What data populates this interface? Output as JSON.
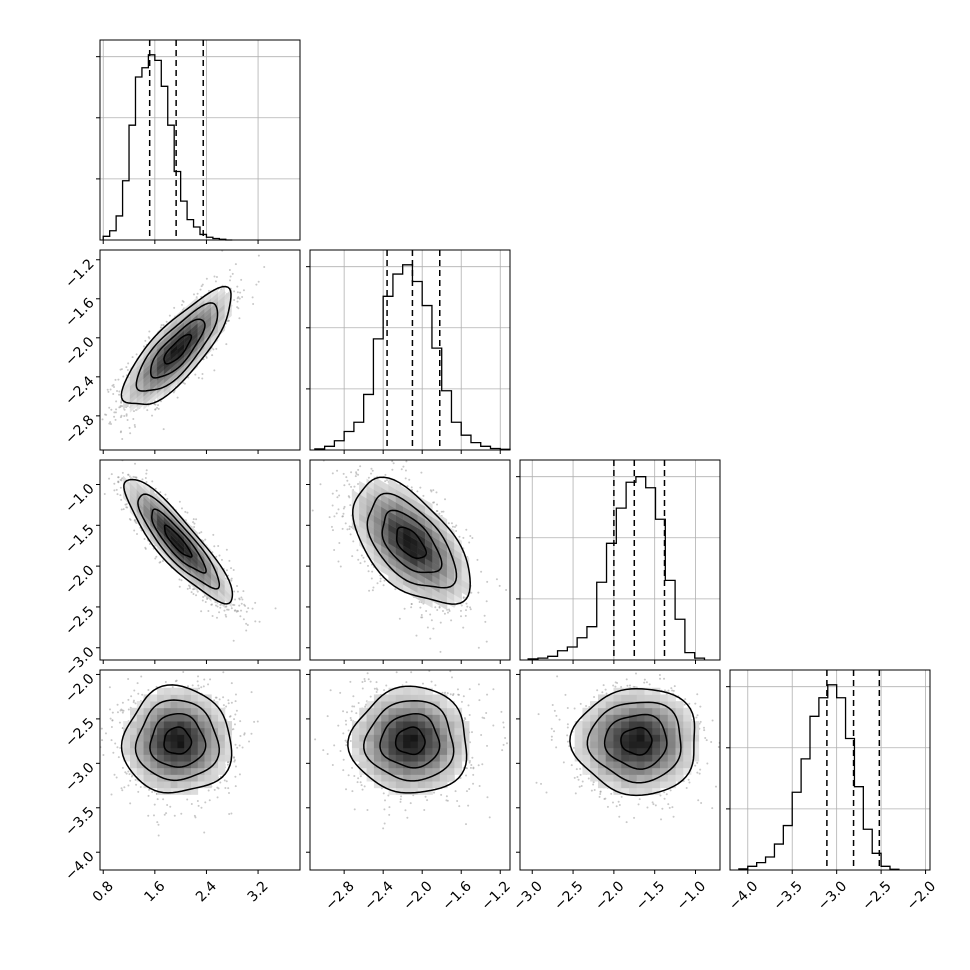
{
  "chart_data": {
    "type": "corner",
    "parameters": [
      {
        "range": [
          0.75,
          3.85
        ],
        "ticks": [
          0.8,
          1.6,
          2.4,
          3.2
        ],
        "tick_labels": [
          "0.8",
          "1.6",
          "2.4",
          "3.2"
        ]
      },
      {
        "range": [
          -3.15,
          -1.1
        ],
        "ticks": [
          -2.8,
          -2.4,
          -2.0,
          -1.6,
          -1.2
        ],
        "tick_labels": [
          "−2.8",
          "−2.4",
          "−2.0",
          "−1.6",
          "−1.2"
        ]
      },
      {
        "range": [
          -3.15,
          -0.7
        ],
        "ticks": [
          -3.0,
          -2.5,
          -2.0,
          -1.5,
          -1.0
        ],
        "tick_labels": [
          "−3.0",
          "−2.5",
          "−2.0",
          "−1.5",
          "−1.0"
        ]
      },
      {
        "range": [
          -4.2,
          -1.95
        ],
        "ticks": [
          -4.0,
          -3.5,
          -3.0,
          -2.5,
          -2.0
        ],
        "tick_labels": [
          "−4.0",
          "−3.5",
          "−3.0",
          "−2.5",
          "−2.0"
        ]
      }
    ],
    "histograms": [
      {
        "param": 0,
        "bins_from": 0.8,
        "bin_width": 0.1,
        "counts": [
          0.02,
          0.05,
          0.13,
          0.32,
          0.62,
          0.88,
          0.93,
          1.0,
          0.97,
          0.83,
          0.62,
          0.37,
          0.21,
          0.11,
          0.07,
          0.03,
          0.015,
          0.008,
          0.004,
          0
        ],
        "quantiles": [
          1.52,
          1.93,
          2.35
        ],
        "ylim": [
          0,
          1.08
        ],
        "hticks": [
          0.33,
          0.66,
          0.99
        ]
      },
      {
        "param": 1,
        "bins_from": -3.1,
        "bin_width": 0.1,
        "counts": [
          0.006,
          0.02,
          0.05,
          0.1,
          0.15,
          0.3,
          0.6,
          0.83,
          0.95,
          1.0,
          0.91,
          0.78,
          0.55,
          0.32,
          0.15,
          0.08,
          0.04,
          0.02,
          0.008,
          0.004
        ],
        "quantiles": [
          -2.36,
          -2.1,
          -1.82
        ],
        "ylim": [
          0,
          1.08
        ],
        "hticks": [
          0.33,
          0.66,
          0.99
        ]
      },
      {
        "param": 2,
        "bins_from": -3.05,
        "bin_width": 0.12,
        "counts": [
          0.006,
          0.01,
          0.02,
          0.05,
          0.07,
          0.12,
          0.18,
          0.42,
          0.63,
          0.82,
          0.96,
          0.99,
          0.93,
          0.76,
          0.43,
          0.22,
          0.04,
          0.01
        ],
        "quantiles": [
          -2.0,
          -1.75,
          -1.38
        ],
        "ylim": [
          0,
          1.08
        ],
        "hticks": [
          0.33,
          0.66,
          0.99
        ]
      },
      {
        "param": 3,
        "bins_from": -4.1,
        "bin_width": 0.1,
        "counts": [
          0.006,
          0.02,
          0.04,
          0.07,
          0.14,
          0.24,
          0.42,
          0.6,
          0.83,
          0.93,
          1.0,
          0.93,
          0.71,
          0.45,
          0.22,
          0.09,
          0.02,
          0.004
        ],
        "quantiles": [
          -3.11,
          -2.81,
          -2.52
        ],
        "ylim": [
          0,
          1.08
        ],
        "hticks": [
          0.33,
          0.66,
          0.99
        ]
      }
    ],
    "joint": [
      {
        "x": 0,
        "y": 1,
        "mean": [
          1.95,
          -2.12
        ],
        "sd": [
          0.42,
          0.3
        ],
        "corr": 0.8
      },
      {
        "x": 0,
        "y": 2,
        "mean": [
          1.95,
          -1.7
        ],
        "sd": [
          0.42,
          0.38
        ],
        "corr": -0.88
      },
      {
        "x": 1,
        "y": 2,
        "mean": [
          -2.12,
          -1.72
        ],
        "sd": [
          0.3,
          0.38
        ],
        "corr": -0.55
      },
      {
        "x": 0,
        "y": 3,
        "mean": [
          1.95,
          -2.75
        ],
        "sd": [
          0.42,
          0.3
        ],
        "corr": 0.0
      },
      {
        "x": 1,
        "y": 3,
        "mean": [
          -2.12,
          -2.75
        ],
        "sd": [
          0.3,
          0.3
        ],
        "corr": 0.0
      },
      {
        "x": 2,
        "y": 3,
        "mean": [
          -1.72,
          -2.75
        ],
        "sd": [
          0.38,
          0.3
        ],
        "corr": 0.0
      }
    ],
    "contour_levels_sigma": [
      0.5,
      1.0,
      1.5,
      2.0
    ],
    "grid": true
  }
}
